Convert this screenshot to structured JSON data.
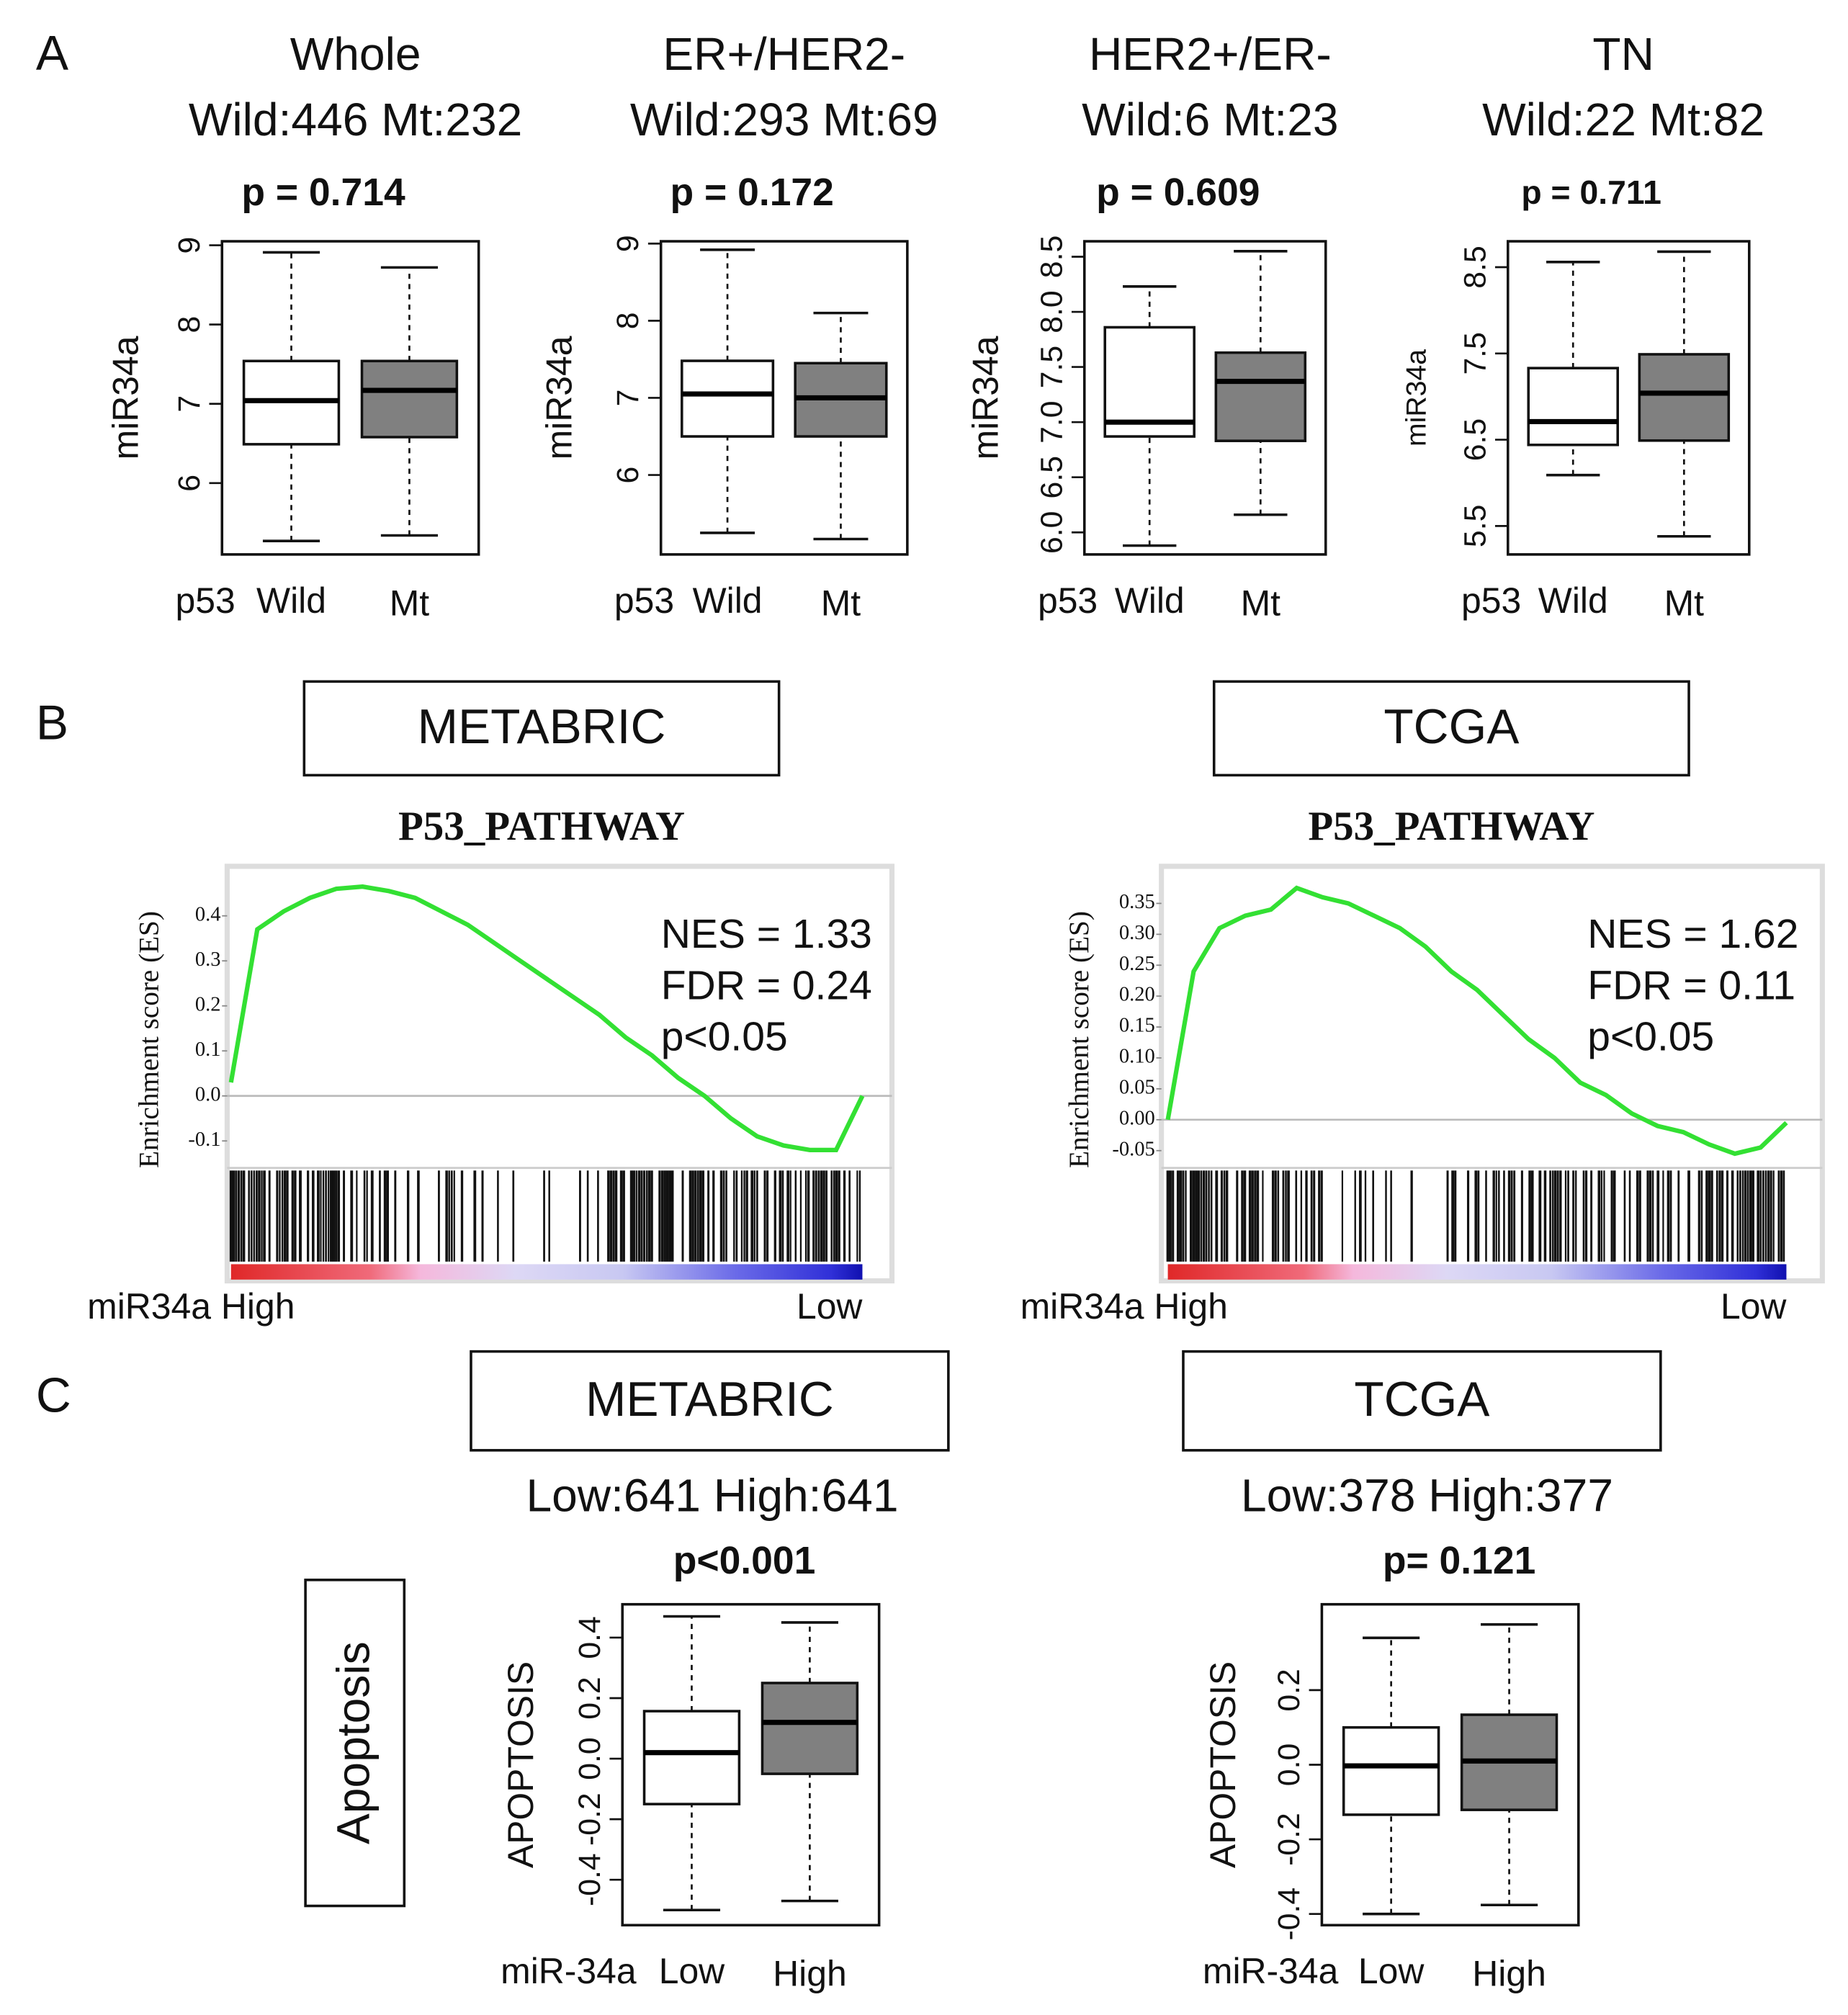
{
  "panel_labels": [
    "A",
    "B",
    "C"
  ],
  "row_label": "Apoptosis",
  "chart_data": [
    {
      "type": "box",
      "title": "Whole",
      "subtitle": "Wild:446 Mt:232",
      "annotation": "p = 0.714",
      "y_label": "miR34a",
      "x_label": "p53",
      "categories": [
        "Wild",
        "Mt"
      ],
      "colors": [
        "#ffffff",
        "#808080"
      ],
      "ylim": [
        5.1,
        9.05
      ],
      "yticks": [
        6,
        7,
        8,
        9
      ],
      "boxes": [
        {
          "min": 5.27,
          "q1": 6.49,
          "median": 7.04,
          "q3": 7.54,
          "max": 8.91
        },
        {
          "min": 5.34,
          "q1": 6.58,
          "median": 7.17,
          "q3": 7.54,
          "max": 8.72
        }
      ]
    },
    {
      "type": "box",
      "title": "ER+/HER2-",
      "subtitle": "Wild:293 Mt:69",
      "annotation": "p = 0.172",
      "y_label": "miR34a",
      "x_label": "p53",
      "categories": [
        "Wild",
        "Mt"
      ],
      "colors": [
        "#ffffff",
        "#808080"
      ],
      "ylim": [
        4.97,
        9.03
      ],
      "yticks": [
        6,
        7,
        8,
        9
      ],
      "boxes": [
        {
          "min": 5.25,
          "q1": 6.5,
          "median": 7.05,
          "q3": 7.48,
          "max": 8.92
        },
        {
          "min": 5.17,
          "q1": 6.5,
          "median": 7.0,
          "q3": 7.45,
          "max": 8.1
        }
      ]
    },
    {
      "type": "box",
      "title": "HER2+/ER-",
      "subtitle": "Wild:6 Mt:23",
      "annotation": "p = 0.609",
      "y_label": "miR34a",
      "x_label": "p53",
      "categories": [
        "Wild",
        "Mt"
      ],
      "colors": [
        "#ffffff",
        "#808080"
      ],
      "ylim": [
        5.8,
        8.64
      ],
      "yticks": [
        {
          "value": 6,
          "label": "6.0"
        },
        6.5,
        {
          "value": 7,
          "label": "7.0"
        },
        7.5,
        {
          "value": 8,
          "label": "8.0"
        },
        8.5
      ],
      "boxes": [
        {
          "min": 5.88,
          "q1": 6.87,
          "median": 7.0,
          "q3": 7.86,
          "max": 8.23
        },
        {
          "min": 6.16,
          "q1": 6.83,
          "median": 7.37,
          "q3": 7.63,
          "max": 8.55
        }
      ]
    },
    {
      "type": "box",
      "title": "TN",
      "subtitle": "Wild:22 Mt:82",
      "annotation": "p = 0.711",
      "y_label": "miR34a",
      "x_label": "p53",
      "categories": [
        "Wild",
        "Mt"
      ],
      "colors": [
        "#ffffff",
        "#808080"
      ],
      "ylim": [
        5.17,
        8.8
      ],
      "yticks": [
        5.5,
        6.5,
        7.5,
        8.5
      ],
      "boxes": [
        {
          "min": 6.09,
          "q1": 6.44,
          "median": 6.71,
          "q3": 7.33,
          "max": 8.56
        },
        {
          "min": 5.38,
          "q1": 6.49,
          "median": 7.04,
          "q3": 7.49,
          "max": 8.68
        }
      ]
    },
    {
      "type": "line",
      "dataset": "METABRIC",
      "title": "P53_PATHWAY",
      "y_label": "Enrichment  score (ES)",
      "annotations": [
        "NES = 1.33",
        "FDR = 0.24",
        "p<0.05"
      ],
      "x_labels": [
        "miR34a High",
        "Low"
      ],
      "color": "#33e033",
      "ylim": [
        -0.16,
        0.51
      ],
      "yticks": [
        {
          "value": 0.4,
          "label": "0.4"
        },
        0.3,
        0.2,
        0.1,
        {
          "value": 0,
          "label": "0.0"
        },
        -0.1
      ],
      "values": [
        0.03,
        0.37,
        0.41,
        0.44,
        0.46,
        0.465,
        0.455,
        0.44,
        0.41,
        0.38,
        0.34,
        0.3,
        0.26,
        0.22,
        0.18,
        0.13,
        0.09,
        0.04,
        0.0,
        -0.05,
        -0.09,
        -0.11,
        -0.12,
        -0.12,
        0.0
      ]
    },
    {
      "type": "line",
      "dataset": "TCGA",
      "title": "P53_PATHWAY",
      "y_label": "Enrichment  score (ES)",
      "annotations": [
        "NES = 1.62",
        "FDR = 0.11",
        "p<0.05"
      ],
      "x_labels": [
        "miR34a High",
        "Low"
      ],
      "color": "#33e033",
      "ylim": [
        -0.078,
        0.41
      ],
      "yticks": [
        0.35,
        {
          "value": 0.3,
          "label": "0.30"
        },
        0.25,
        {
          "value": 0.2,
          "label": "0.20"
        },
        0.15,
        {
          "value": 0.1,
          "label": "0.10"
        },
        0.05,
        {
          "value": 0,
          "label": "0.00"
        },
        -0.05
      ],
      "values": [
        0.0,
        0.24,
        0.31,
        0.33,
        0.34,
        0.375,
        0.36,
        0.35,
        0.33,
        0.31,
        0.28,
        0.24,
        0.21,
        0.17,
        0.13,
        0.1,
        0.06,
        0.04,
        0.01,
        -0.01,
        -0.02,
        -0.04,
        -0.055,
        -0.045,
        -0.005
      ]
    },
    {
      "type": "box",
      "dataset": "METABRIC",
      "subtitle": "Low:641 High:641",
      "annotation": "p<0.001",
      "y_label": "APOPTOSIS",
      "x_label": "miR-34a",
      "categories": [
        "Low",
        "High"
      ],
      "colors": [
        "#ffffff",
        "#808080"
      ],
      "ylim": [
        -0.55,
        0.51
      ],
      "yticks": [
        -0.4,
        -0.2,
        {
          "value": 0,
          "label": "0.0"
        },
        0.2,
        0.4
      ],
      "boxes": [
        {
          "min": -0.5,
          "q1": -0.15,
          "median": 0.02,
          "q3": 0.157,
          "max": 0.47
        },
        {
          "min": -0.47,
          "q1": -0.05,
          "median": 0.12,
          "q3": 0.25,
          "max": 0.45
        }
      ]
    },
    {
      "type": "box",
      "dataset": "TCGA",
      "subtitle": "Low:378 High:377",
      "annotation": "p= 0.121",
      "y_label": "APOPTOSIS",
      "x_label": "miR-34a",
      "categories": [
        "Low",
        "High"
      ],
      "colors": [
        "#ffffff",
        "#808080"
      ],
      "ylim": [
        -0.43,
        0.43
      ],
      "yticks": [
        -0.4,
        -0.2,
        {
          "value": 0,
          "label": "0.0"
        },
        0.2
      ],
      "boxes": [
        {
          "min": -0.4,
          "q1": -0.134,
          "median": -0.003,
          "q3": 0.1,
          "max": 0.34
        },
        {
          "min": -0.376,
          "q1": -0.121,
          "median": 0.01,
          "q3": 0.134,
          "max": 0.376
        }
      ]
    }
  ]
}
